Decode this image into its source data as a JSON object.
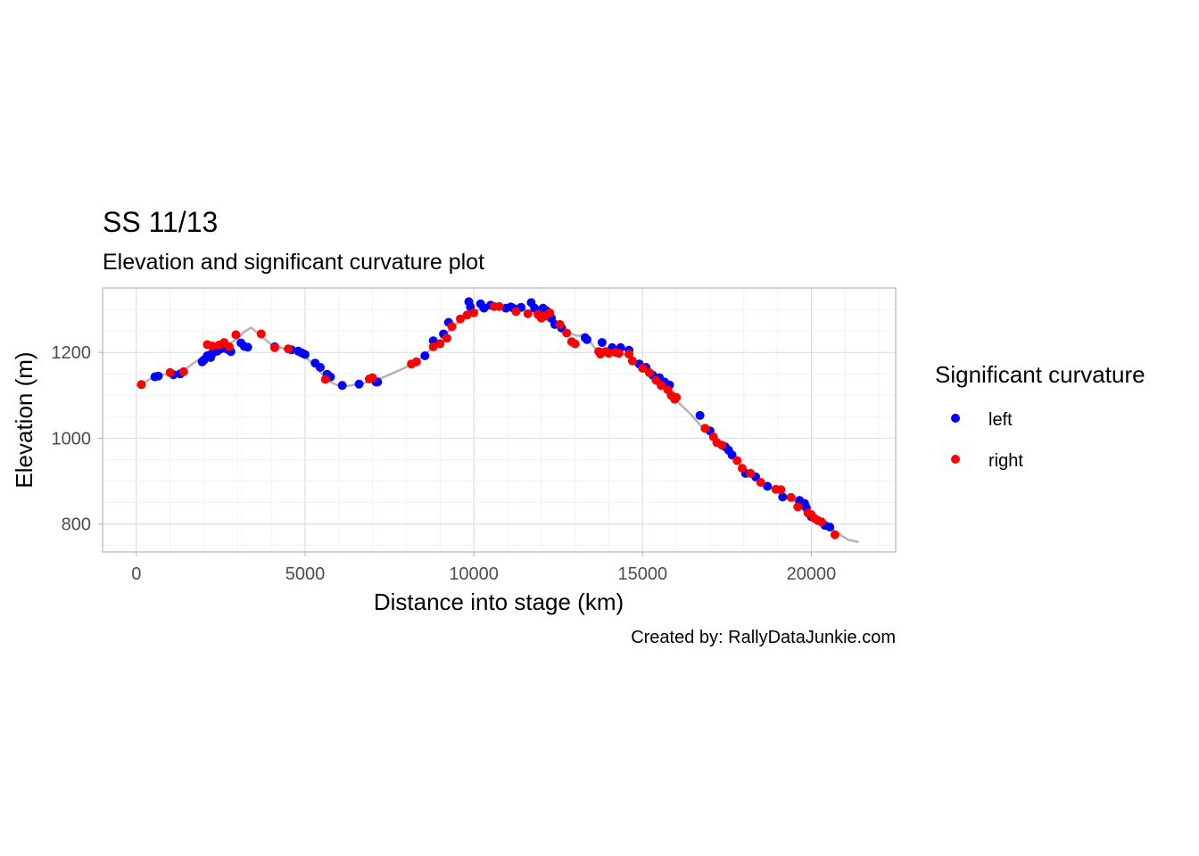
{
  "chart_data": {
    "type": "scatter",
    "title": "SS 11/13",
    "subtitle": "Elevation and significant curvature plot",
    "xlabel": "Distance into stage (km)",
    "ylabel": "Elevation (m)",
    "caption": "Created by: RallyDataJunkie.com",
    "xlim": [
      -1000,
      22500
    ],
    "ylim": [
      735,
      1350
    ],
    "x_ticks": [
      0,
      5000,
      10000,
      15000,
      20000
    ],
    "x_tick_labels": [
      "0",
      "5000",
      "10000",
      "15000",
      "20000"
    ],
    "y_ticks": [
      800,
      1000,
      1200
    ],
    "y_tick_labels": [
      "800",
      "1000",
      "1200"
    ],
    "grid": true,
    "legend": {
      "title": "Significant curvature",
      "position": "right",
      "entries": [
        {
          "label": "left",
          "color": "#0000ff"
        },
        {
          "label": "right",
          "color": "#ff0000"
        }
      ]
    },
    "colors": {
      "left": "#0000ff",
      "right": "#ff0000",
      "route": "#b3b3b3"
    },
    "route": {
      "name": "elevation profile",
      "x": [
        0,
        200,
        500,
        800,
        1100,
        1400,
        1700,
        2000,
        2200,
        2500,
        2800,
        3000,
        3200,
        3400,
        3700,
        4000,
        4400,
        4800,
        5100,
        5400,
        5700,
        6000,
        6300,
        6700,
        7100,
        7500,
        7900,
        8300,
        8700,
        9100,
        9500,
        9900,
        10300,
        10700,
        11100,
        11500,
        11900,
        12300,
        12700,
        13100,
        13300,
        13600,
        14000,
        14400,
        14800,
        15200,
        15600,
        16000,
        16400,
        16800,
        17200,
        17600,
        18000,
        18400,
        18800,
        19200,
        19600,
        20000,
        20400,
        20800,
        21100,
        21400
      ],
      "y": [
        1122,
        1128,
        1142,
        1148,
        1152,
        1158,
        1175,
        1192,
        1208,
        1218,
        1222,
        1232,
        1248,
        1258,
        1238,
        1218,
        1208,
        1203,
        1183,
        1158,
        1133,
        1122,
        1122,
        1128,
        1135,
        1148,
        1162,
        1178,
        1205,
        1238,
        1268,
        1293,
        1303,
        1306,
        1302,
        1298,
        1293,
        1268,
        1248,
        1238,
        1242,
        1208,
        1205,
        1198,
        1178,
        1148,
        1118,
        1088,
        1058,
        1023,
        993,
        963,
        928,
        903,
        883,
        868,
        848,
        818,
        798,
        778,
        763,
        758
      ]
    },
    "series": [
      {
        "name": "left",
        "color": "#0000ff",
        "points": [
          [
            550,
            1143
          ],
          [
            650,
            1145
          ],
          [
            1100,
            1148
          ],
          [
            1300,
            1150
          ],
          [
            1950,
            1178
          ],
          [
            2000,
            1182
          ],
          [
            2100,
            1192
          ],
          [
            2200,
            1188
          ],
          [
            2250,
            1197
          ],
          [
            2400,
            1203
          ],
          [
            2500,
            1208
          ],
          [
            2700,
            1207
          ],
          [
            2800,
            1202
          ],
          [
            3100,
            1222
          ],
          [
            3200,
            1214
          ],
          [
            3300,
            1212
          ],
          [
            4100,
            1213
          ],
          [
            4600,
            1206
          ],
          [
            4800,
            1203
          ],
          [
            4900,
            1199
          ],
          [
            5000,
            1195
          ],
          [
            5300,
            1175
          ],
          [
            5450,
            1165
          ],
          [
            5650,
            1149
          ],
          [
            5750,
            1143
          ],
          [
            6100,
            1123
          ],
          [
            6600,
            1126
          ],
          [
            7100,
            1131
          ],
          [
            7150,
            1131
          ],
          [
            8550,
            1192
          ],
          [
            8800,
            1227
          ],
          [
            9100,
            1243
          ],
          [
            9250,
            1270
          ],
          [
            9850,
            1318
          ],
          [
            9900,
            1306
          ],
          [
            10200,
            1313
          ],
          [
            10300,
            1303
          ],
          [
            10500,
            1310
          ],
          [
            10950,
            1303
          ],
          [
            11100,
            1306
          ],
          [
            11200,
            1302
          ],
          [
            11400,
            1305
          ],
          [
            11700,
            1316
          ],
          [
            11800,
            1303
          ],
          [
            12050,
            1303
          ],
          [
            12150,
            1297
          ],
          [
            12300,
            1280
          ],
          [
            12400,
            1265
          ],
          [
            12600,
            1257
          ],
          [
            13300,
            1234
          ],
          [
            13350,
            1230
          ],
          [
            13800,
            1223
          ],
          [
            14100,
            1211
          ],
          [
            14350,
            1211
          ],
          [
            14600,
            1205
          ],
          [
            14900,
            1173
          ],
          [
            15100,
            1165
          ],
          [
            15300,
            1147
          ],
          [
            15500,
            1141
          ],
          [
            15650,
            1131
          ],
          [
            15800,
            1124
          ],
          [
            16700,
            1053
          ],
          [
            17000,
            1017
          ],
          [
            17450,
            980
          ],
          [
            17550,
            972
          ],
          [
            17650,
            961
          ],
          [
            18050,
            918
          ],
          [
            18350,
            910
          ],
          [
            18700,
            888
          ],
          [
            19150,
            863
          ],
          [
            19650,
            855
          ],
          [
            19800,
            848
          ],
          [
            19850,
            838
          ],
          [
            20000,
            817
          ],
          [
            20400,
            797
          ],
          [
            20550,
            793
          ]
        ]
      },
      {
        "name": "right",
        "color": "#ff0000",
        "points": [
          [
            150,
            1125
          ],
          [
            1000,
            1153
          ],
          [
            1400,
            1155
          ],
          [
            2100,
            1218
          ],
          [
            2250,
            1215
          ],
          [
            2450,
            1217
          ],
          [
            2600,
            1223
          ],
          [
            2750,
            1213
          ],
          [
            2950,
            1241
          ],
          [
            3700,
            1243
          ],
          [
            4100,
            1211
          ],
          [
            4500,
            1208
          ],
          [
            5600,
            1137
          ],
          [
            6900,
            1138
          ],
          [
            7000,
            1141
          ],
          [
            8150,
            1173
          ],
          [
            8300,
            1178
          ],
          [
            8800,
            1213
          ],
          [
            9000,
            1220
          ],
          [
            9200,
            1233
          ],
          [
            9350,
            1260
          ],
          [
            9600,
            1278
          ],
          [
            9800,
            1287
          ],
          [
            10000,
            1292
          ],
          [
            10600,
            1307
          ],
          [
            10750,
            1307
          ],
          [
            11250,
            1295
          ],
          [
            11600,
            1290
          ],
          [
            11900,
            1288
          ],
          [
            12000,
            1280
          ],
          [
            12100,
            1285
          ],
          [
            12250,
            1292
          ],
          [
            12550,
            1265
          ],
          [
            12750,
            1245
          ],
          [
            12900,
            1225
          ],
          [
            13000,
            1220
          ],
          [
            13700,
            1202
          ],
          [
            13750,
            1196
          ],
          [
            13900,
            1202
          ],
          [
            14000,
            1198
          ],
          [
            14200,
            1200
          ],
          [
            14300,
            1198
          ],
          [
            14600,
            1196
          ],
          [
            14700,
            1180
          ],
          [
            15000,
            1163
          ],
          [
            15200,
            1153
          ],
          [
            15400,
            1135
          ],
          [
            15550,
            1123
          ],
          [
            15750,
            1113
          ],
          [
            15850,
            1100
          ],
          [
            15950,
            1091
          ],
          [
            16000,
            1095
          ],
          [
            16850,
            1023
          ],
          [
            17100,
            1003
          ],
          [
            17200,
            990
          ],
          [
            17350,
            984
          ],
          [
            17800,
            948
          ],
          [
            17950,
            930
          ],
          [
            18200,
            918
          ],
          [
            18500,
            897
          ],
          [
            18950,
            881
          ],
          [
            19100,
            880
          ],
          [
            19400,
            862
          ],
          [
            19600,
            840
          ],
          [
            19900,
            826
          ],
          [
            20000,
            822
          ],
          [
            20100,
            813
          ],
          [
            20200,
            808
          ],
          [
            20300,
            805
          ],
          [
            20700,
            775
          ]
        ]
      }
    ]
  }
}
